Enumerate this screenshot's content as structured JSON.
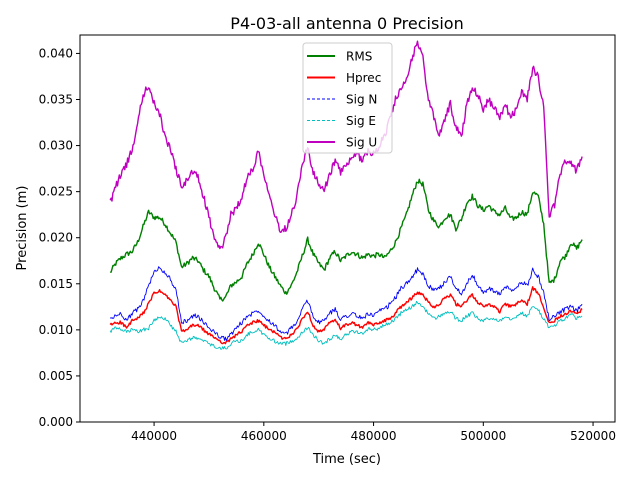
{
  "chart_data": {
    "type": "line",
    "title": "P4-03-all antenna 0 Precision",
    "xlabel": "Time (sec)",
    "ylabel": "Precision (m)",
    "xlim": [
      426500,
      524000
    ],
    "ylim": [
      0,
      0.042
    ],
    "xticks": [
      440000,
      460000,
      480000,
      500000,
      520000
    ],
    "xtick_labels": [
      "440000",
      "460000",
      "480000",
      "500000",
      "520000"
    ],
    "yticks": [
      0.0,
      0.005,
      0.01,
      0.015,
      0.02,
      0.025,
      0.03,
      0.035,
      0.04
    ],
    "ytick_labels": [
      "0.000",
      "0.005",
      "0.010",
      "0.015",
      "0.020",
      "0.025",
      "0.030",
      "0.035",
      "0.040"
    ],
    "legend_position": "upper-center",
    "series": [
      {
        "name": "RMS",
        "color": "#008000",
        "style": "solid",
        "x": [
          432000,
          433000,
          434000,
          435000,
          436000,
          437000,
          438000,
          439000,
          440000,
          441000,
          442000,
          443000,
          444000,
          445000,
          446000,
          447000,
          448000,
          449000,
          450000,
          451000,
          452000,
          453000,
          454000,
          455000,
          456000,
          457000,
          458000,
          459000,
          460000,
          461000,
          462000,
          463000,
          464000,
          465000,
          466000,
          467000,
          468000,
          469000,
          470000,
          471000,
          472000,
          473000,
          474000,
          475000,
          476000,
          477000,
          478000,
          479000,
          480000,
          481000,
          482000,
          483000,
          484000,
          485000,
          486000,
          487000,
          488000,
          489000,
          490000,
          491000,
          492000,
          493000,
          494000,
          495000,
          496000,
          497000,
          498000,
          499000,
          500000,
          501000,
          502000,
          503000,
          504000,
          505000,
          506000,
          507000,
          508000,
          509000,
          510000,
          511000,
          512000,
          513000,
          514000,
          515000,
          516000,
          517000,
          518000
        ],
        "y": [
          0.0162,
          0.0172,
          0.0178,
          0.0182,
          0.0185,
          0.0195,
          0.0212,
          0.0228,
          0.0222,
          0.0222,
          0.0215,
          0.0205,
          0.0195,
          0.0168,
          0.0172,
          0.0178,
          0.0175,
          0.0165,
          0.0158,
          0.0145,
          0.0133,
          0.0135,
          0.0148,
          0.0152,
          0.0158,
          0.0172,
          0.0182,
          0.0195,
          0.0182,
          0.0168,
          0.0158,
          0.0148,
          0.014,
          0.0148,
          0.0162,
          0.018,
          0.0198,
          0.0182,
          0.0172,
          0.0165,
          0.0178,
          0.0185,
          0.0175,
          0.018,
          0.0185,
          0.0182,
          0.0178,
          0.0182,
          0.018,
          0.0182,
          0.0178,
          0.0185,
          0.0195,
          0.021,
          0.0225,
          0.0245,
          0.0262,
          0.0258,
          0.023,
          0.0218,
          0.0212,
          0.0222,
          0.0225,
          0.021,
          0.022,
          0.0238,
          0.0245,
          0.0235,
          0.023,
          0.0235,
          0.0228,
          0.0225,
          0.0232,
          0.022,
          0.0222,
          0.0228,
          0.0225,
          0.025,
          0.0245,
          0.0215,
          0.015,
          0.0155,
          0.0175,
          0.018,
          0.0195,
          0.0188,
          0.0198
        ]
      },
      {
        "name": "Hprec",
        "color": "#ff0000",
        "style": "solid",
        "x": [
          432000,
          433000,
          434000,
          435000,
          436000,
          437000,
          438000,
          439000,
          440000,
          441000,
          442000,
          443000,
          444000,
          445000,
          446000,
          447000,
          448000,
          449000,
          450000,
          451000,
          452000,
          453000,
          454000,
          455000,
          456000,
          457000,
          458000,
          459000,
          460000,
          461000,
          462000,
          463000,
          464000,
          465000,
          466000,
          467000,
          468000,
          469000,
          470000,
          471000,
          472000,
          473000,
          474000,
          475000,
          476000,
          477000,
          478000,
          479000,
          480000,
          481000,
          482000,
          483000,
          484000,
          485000,
          486000,
          487000,
          488000,
          489000,
          490000,
          491000,
          492000,
          493000,
          494000,
          495000,
          496000,
          497000,
          498000,
          499000,
          500000,
          501000,
          502000,
          503000,
          504000,
          505000,
          506000,
          507000,
          508000,
          509000,
          510000,
          511000,
          512000,
          513000,
          514000,
          515000,
          516000,
          517000,
          518000
        ],
        "y": [
          0.0105,
          0.0108,
          0.0108,
          0.0102,
          0.011,
          0.0112,
          0.0118,
          0.0128,
          0.014,
          0.0142,
          0.0138,
          0.0132,
          0.0125,
          0.0098,
          0.01,
          0.0105,
          0.0105,
          0.01,
          0.0095,
          0.0092,
          0.0088,
          0.0085,
          0.009,
          0.0095,
          0.0098,
          0.0105,
          0.0108,
          0.011,
          0.0105,
          0.01,
          0.0098,
          0.0092,
          0.009,
          0.0095,
          0.01,
          0.0112,
          0.012,
          0.0105,
          0.0098,
          0.01,
          0.0108,
          0.011,
          0.0102,
          0.0105,
          0.0108,
          0.0105,
          0.0102,
          0.0108,
          0.0105,
          0.0108,
          0.011,
          0.0112,
          0.0118,
          0.0125,
          0.013,
          0.0135,
          0.014,
          0.0138,
          0.013,
          0.0125,
          0.0128,
          0.0135,
          0.0138,
          0.0128,
          0.0125,
          0.0132,
          0.0138,
          0.013,
          0.0125,
          0.0128,
          0.0125,
          0.012,
          0.0128,
          0.0125,
          0.0128,
          0.0132,
          0.0128,
          0.0145,
          0.014,
          0.0125,
          0.0108,
          0.011,
          0.0115,
          0.0118,
          0.012,
          0.0118,
          0.0122
        ]
      },
      {
        "name": "Sig N",
        "color": "#0000ff",
        "style": "dashed",
        "x": [
          432000,
          433000,
          434000,
          435000,
          436000,
          437000,
          438000,
          439000,
          440000,
          441000,
          442000,
          443000,
          444000,
          445000,
          446000,
          447000,
          448000,
          449000,
          450000,
          451000,
          452000,
          453000,
          454000,
          455000,
          456000,
          457000,
          458000,
          459000,
          460000,
          461000,
          462000,
          463000,
          464000,
          465000,
          466000,
          467000,
          468000,
          469000,
          470000,
          471000,
          472000,
          473000,
          474000,
          475000,
          476000,
          477000,
          478000,
          479000,
          480000,
          481000,
          482000,
          483000,
          484000,
          485000,
          486000,
          487000,
          488000,
          489000,
          490000,
          491000,
          492000,
          493000,
          494000,
          495000,
          496000,
          497000,
          498000,
          499000,
          500000,
          501000,
          502000,
          503000,
          504000,
          505000,
          506000,
          507000,
          508000,
          509000,
          510000,
          511000,
          512000,
          513000,
          514000,
          515000,
          516000,
          517000,
          518000
        ],
        "y": [
          0.0112,
          0.0115,
          0.0118,
          0.011,
          0.0118,
          0.0122,
          0.0132,
          0.0148,
          0.0162,
          0.0168,
          0.0162,
          0.0155,
          0.0142,
          0.0108,
          0.011,
          0.0115,
          0.0115,
          0.0108,
          0.0102,
          0.0098,
          0.0092,
          0.009,
          0.0095,
          0.0102,
          0.0108,
          0.0115,
          0.0118,
          0.0122,
          0.0115,
          0.011,
          0.0105,
          0.0098,
          0.0095,
          0.0102,
          0.0108,
          0.0122,
          0.0132,
          0.0115,
          0.0108,
          0.011,
          0.0118,
          0.0122,
          0.0112,
          0.0115,
          0.0118,
          0.0115,
          0.0112,
          0.0118,
          0.0115,
          0.012,
          0.0122,
          0.0128,
          0.0135,
          0.0145,
          0.015,
          0.0158,
          0.0165,
          0.016,
          0.0148,
          0.0142,
          0.0145,
          0.0152,
          0.0158,
          0.0145,
          0.014,
          0.015,
          0.016,
          0.0148,
          0.014,
          0.0145,
          0.0142,
          0.0138,
          0.0148,
          0.0142,
          0.0145,
          0.0152,
          0.0148,
          0.0165,
          0.0158,
          0.014,
          0.0112,
          0.0115,
          0.012,
          0.0122,
          0.0125,
          0.012,
          0.0128
        ]
      },
      {
        "name": "Sig E",
        "color": "#00bfbf",
        "style": "dashed",
        "x": [
          432000,
          433000,
          434000,
          435000,
          436000,
          437000,
          438000,
          439000,
          440000,
          441000,
          442000,
          443000,
          444000,
          445000,
          446000,
          447000,
          448000,
          449000,
          450000,
          451000,
          452000,
          453000,
          454000,
          455000,
          456000,
          457000,
          458000,
          459000,
          460000,
          461000,
          462000,
          463000,
          464000,
          465000,
          466000,
          467000,
          468000,
          469000,
          470000,
          471000,
          472000,
          473000,
          474000,
          475000,
          476000,
          477000,
          478000,
          479000,
          480000,
          481000,
          482000,
          483000,
          484000,
          485000,
          486000,
          487000,
          488000,
          489000,
          490000,
          491000,
          492000,
          493000,
          494000,
          495000,
          496000,
          497000,
          498000,
          499000,
          500000,
          501000,
          502000,
          503000,
          504000,
          505000,
          506000,
          507000,
          508000,
          509000,
          510000,
          511000,
          512000,
          513000,
          514000,
          515000,
          516000,
          517000,
          518000
        ],
        "y": [
          0.0098,
          0.0102,
          0.01,
          0.0098,
          0.01,
          0.0098,
          0.01,
          0.0102,
          0.011,
          0.0115,
          0.0112,
          0.0105,
          0.0098,
          0.0085,
          0.0088,
          0.0092,
          0.009,
          0.0088,
          0.0085,
          0.0082,
          0.008,
          0.008,
          0.0085,
          0.0088,
          0.0088,
          0.0095,
          0.0098,
          0.01,
          0.0095,
          0.009,
          0.0088,
          0.0085,
          0.0085,
          0.0088,
          0.009,
          0.0098,
          0.0102,
          0.0095,
          0.0088,
          0.0085,
          0.009,
          0.0095,
          0.009,
          0.0095,
          0.0098,
          0.0098,
          0.0095,
          0.0102,
          0.01,
          0.0102,
          0.0105,
          0.0108,
          0.0112,
          0.0118,
          0.0122,
          0.0125,
          0.013,
          0.0125,
          0.0118,
          0.0112,
          0.0115,
          0.0118,
          0.012,
          0.0112,
          0.011,
          0.0115,
          0.0118,
          0.0112,
          0.011,
          0.0112,
          0.0112,
          0.011,
          0.0115,
          0.0112,
          0.0115,
          0.0118,
          0.0115,
          0.0125,
          0.0122,
          0.0112,
          0.0102,
          0.0105,
          0.011,
          0.0112,
          0.0118,
          0.0112,
          0.0115
        ]
      },
      {
        "name": "Sig U",
        "color": "#bf00bf",
        "style": "solid",
        "x": [
          432000,
          433000,
          434000,
          435000,
          436000,
          437000,
          438000,
          439000,
          440000,
          441000,
          442000,
          443000,
          444000,
          445000,
          446000,
          447000,
          448000,
          449000,
          450000,
          451000,
          452000,
          453000,
          454000,
          455000,
          456000,
          457000,
          458000,
          459000,
          460000,
          461000,
          462000,
          463000,
          464000,
          465000,
          466000,
          467000,
          468000,
          469000,
          470000,
          471000,
          472000,
          473000,
          474000,
          475000,
          476000,
          477000,
          478000,
          479000,
          480000,
          481000,
          482000,
          483000,
          484000,
          485000,
          486000,
          487000,
          488000,
          489000,
          490000,
          491000,
          492000,
          493000,
          494000,
          495000,
          496000,
          497000,
          498000,
          499000,
          500000,
          501000,
          502000,
          503000,
          504000,
          505000,
          506000,
          507000,
          508000,
          509000,
          510000,
          511000,
          512000,
          513000,
          514000,
          515000,
          516000,
          517000,
          518000
        ],
        "y": [
          0.0238,
          0.0255,
          0.027,
          0.028,
          0.0295,
          0.0325,
          0.0355,
          0.0365,
          0.0345,
          0.0335,
          0.031,
          0.0295,
          0.0275,
          0.0255,
          0.0262,
          0.0272,
          0.0265,
          0.0245,
          0.0222,
          0.02,
          0.0185,
          0.02,
          0.0225,
          0.0232,
          0.0245,
          0.0265,
          0.0275,
          0.0295,
          0.0268,
          0.025,
          0.0225,
          0.0208,
          0.021,
          0.0225,
          0.0245,
          0.028,
          0.0298,
          0.027,
          0.0258,
          0.025,
          0.027,
          0.0282,
          0.0272,
          0.0278,
          0.0285,
          0.029,
          0.0285,
          0.0295,
          0.029,
          0.03,
          0.031,
          0.033,
          0.035,
          0.036,
          0.037,
          0.0395,
          0.0412,
          0.0395,
          0.035,
          0.033,
          0.031,
          0.033,
          0.0345,
          0.032,
          0.031,
          0.0345,
          0.0365,
          0.0355,
          0.034,
          0.035,
          0.034,
          0.033,
          0.0345,
          0.033,
          0.034,
          0.036,
          0.035,
          0.0385,
          0.0375,
          0.034,
          0.0225,
          0.0235,
          0.027,
          0.0285,
          0.028,
          0.0272,
          0.0288
        ]
      }
    ]
  }
}
